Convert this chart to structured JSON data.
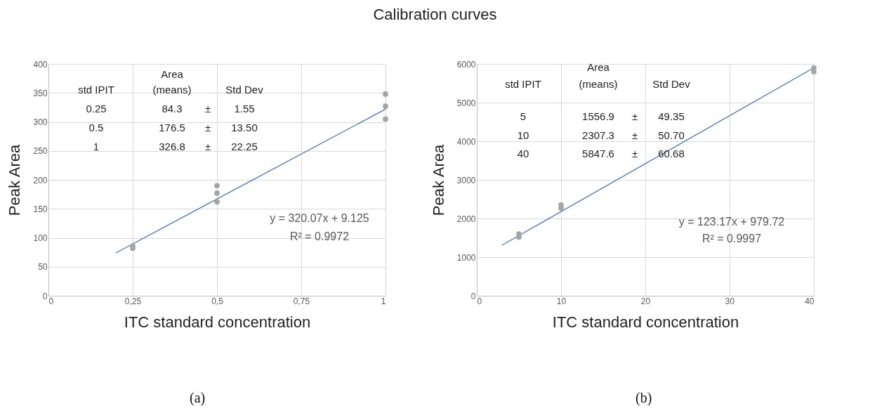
{
  "chart_data": [
    {
      "type": "scatter",
      "title": "Calibration curves",
      "xlabel": "ITC standard concentration",
      "ylabel": "Peak Area",
      "grid": true,
      "xlim": [
        0,
        1
      ],
      "xticks": [
        0,
        {
          "value": 0.25,
          "label": "0,25"
        },
        {
          "value": 0.5,
          "label": "0,5"
        },
        {
          "value": 0.75,
          "label": "0,75"
        },
        1
      ],
      "ylim": [
        0,
        400
      ],
      "yticks": [
        0,
        50,
        100,
        150,
        200,
        250,
        300,
        350,
        400
      ],
      "series": [
        {
          "type": "scatter",
          "marker": "circle",
          "color": "#a5a5a5",
          "x": [
            0.25,
            0.25,
            0.5,
            0.5,
            0.5,
            1,
            1,
            1
          ],
          "values": [
            86,
            82,
            190,
            177,
            162,
            348,
            327,
            305
          ]
        },
        {
          "type": "line",
          "color": "#4472c4",
          "x": [
            0.2,
            1
          ],
          "values": [
            74,
            322
          ]
        }
      ],
      "annotations": [
        "std IPIT",
        "Area",
        "(means)",
        "Std Dev",
        "0.25",
        "84.3",
        "±",
        "1.55",
        "0.5",
        "176.5",
        "±",
        "13.50",
        "1",
        "326.8",
        "±",
        "22.25",
        "y = 320.07x + 9.125",
        "R² = 0.9972",
        "(a)"
      ]
    },
    {
      "type": "scatter",
      "xlabel": "ITC standard concentration",
      "ylabel": "Peak Area",
      "grid": true,
      "xlim": [
        0,
        40
      ],
      "xticks": [
        0,
        10,
        20,
        30,
        40
      ],
      "ylim": [
        0,
        6000
      ],
      "yticks": [
        0,
        1000,
        2000,
        3000,
        4000,
        5000,
        6000
      ],
      "series": [
        {
          "type": "scatter",
          "marker": "circle",
          "color": "#a5a5a5",
          "x": [
            5,
            5,
            10,
            10,
            40,
            40
          ],
          "values": [
            1600,
            1520,
            2350,
            2270,
            5900,
            5800
          ]
        },
        {
          "type": "line",
          "color": "#4472c4",
          "x": [
            3,
            40
          ],
          "values": [
            1310,
            5900
          ]
        }
      ],
      "annotations": [
        "std IPIT",
        "Area",
        "(means)",
        "Std Dev",
        "5",
        "1556.9",
        "±",
        "49.35",
        "10",
        "2307.3",
        "±",
        "50.70",
        "40",
        "5847.6",
        "±",
        "60.68",
        "y = 123.17x + 979.72",
        "R² = 0.9997",
        "(b)"
      ]
    }
  ]
}
